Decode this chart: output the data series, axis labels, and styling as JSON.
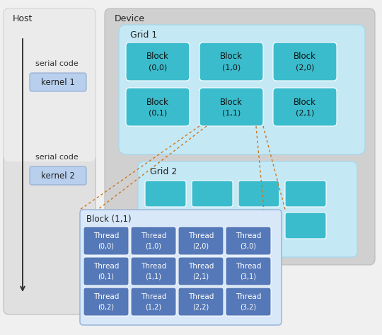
{
  "fig_width": 5.4,
  "fig_height": 4.73,
  "dpi": 100,
  "bg_color": "#f0f0f0",
  "host_bg_top": "#e8e8e8",
  "host_bg_bot": "#c8c8c8",
  "device_bg": "#c8c8c8",
  "grid1_bg": "#c5e8f5",
  "grid2_bg": "#c5e8f5",
  "block_color": "#3bbccc",
  "thread_color": "#5578b8",
  "kernel_color": "#b8d0ee",
  "kernel_border": "#90aad0",
  "arrow_color": "#c87820",
  "host_label": "Host",
  "device_label": "Device",
  "grid1_label": "Grid 1",
  "grid2_label": "Grid 2",
  "block_label": "Block (1,1)",
  "serial_code": "serial code",
  "kernel1": "kernel 1",
  "kernel2": "kernel 2",
  "blocks_grid1": [
    [
      "Block",
      "(0,0)"
    ],
    [
      "Block",
      "(1,0)"
    ],
    [
      "Block",
      "(2,0)"
    ],
    [
      "Block",
      "(0,1)"
    ],
    [
      "Block",
      "(1,1)"
    ],
    [
      "Block",
      "(2,1)"
    ]
  ],
  "threads": [
    [
      "Thread",
      "(0,0)"
    ],
    [
      "Thread",
      "(1,0)"
    ],
    [
      "Thread",
      "(2,0)"
    ],
    [
      "Thread",
      "(3,0)"
    ],
    [
      "Thread",
      "(0,1)"
    ],
    [
      "Thread",
      "(1,1)"
    ],
    [
      "Thread",
      "(2,1)"
    ],
    [
      "Thread",
      "(3,1)"
    ],
    [
      "Thread",
      "(0,2)"
    ],
    [
      "Thread",
      "(1,2)"
    ],
    [
      "Thread",
      "(2,2)"
    ],
    [
      "Thread",
      "(3,2)"
    ]
  ]
}
